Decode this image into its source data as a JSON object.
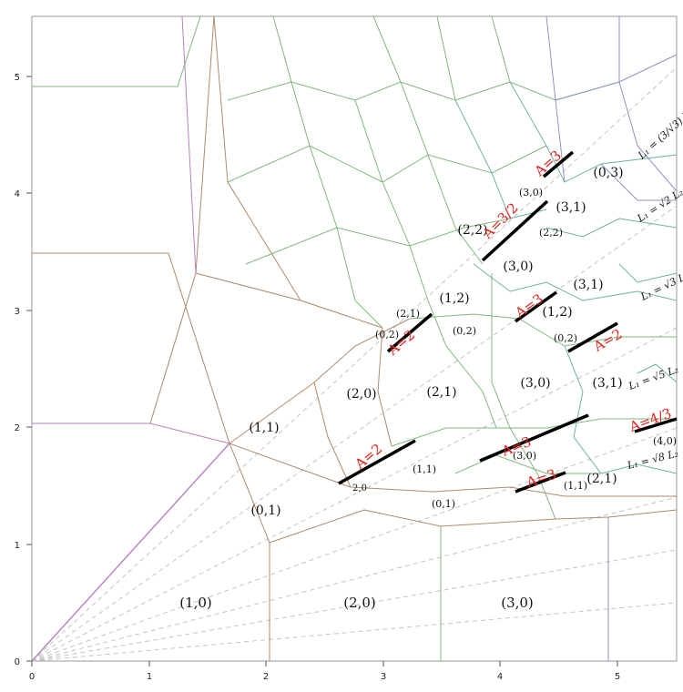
{
  "colors": {
    "frame": "#777777",
    "dashed": "#c0c0c0",
    "thick": "#000000",
    "red": "#e0201a",
    "purple": "#b77fc0",
    "brown": "#b08868",
    "green": "#7fb87f",
    "teal": "#6fb0a8",
    "blue": "#8c93c8"
  },
  "axes": {
    "x_ticks": [
      "0",
      "1",
      "2",
      "3",
      "4",
      "5"
    ],
    "y_ticks": [
      "0",
      "1",
      "2",
      "3",
      "4",
      "5"
    ]
  },
  "regions_large": [
    "(1,0)",
    "(2,0)",
    "(3,0)",
    "(0,1)",
    "(1,1)",
    "(2,0)",
    "(2,1)",
    "(3,0)",
    "(3,1)",
    "(2,2)",
    "(3,0)",
    "(3,1)",
    "(0,3)",
    "(1,2)",
    "(1,2)",
    "(3,1)",
    "(2,1)"
  ],
  "regions_small": [
    "(1,1)",
    "(0,1)",
    "(3,0)",
    "(1,1)",
    "(4,0)",
    "(2,1)",
    "(0,2)",
    "(0,2)",
    "(0,2)",
    "(3,0)",
    "(2,2)",
    "2,0"
  ],
  "a_labels": [
    "A=2",
    "A=2",
    "A=3",
    "A=3",
    "A=4/3",
    "A=2",
    "A=3",
    "A=3/2",
    "A=3"
  ],
  "line_labels": [
    "L₁ = √8 L₂",
    "L₁ = √5 L₂",
    "L₁ = √3 L₂",
    "L₁ = √2 L₂",
    "L₁ = (3/√3) L₂"
  ]
}
